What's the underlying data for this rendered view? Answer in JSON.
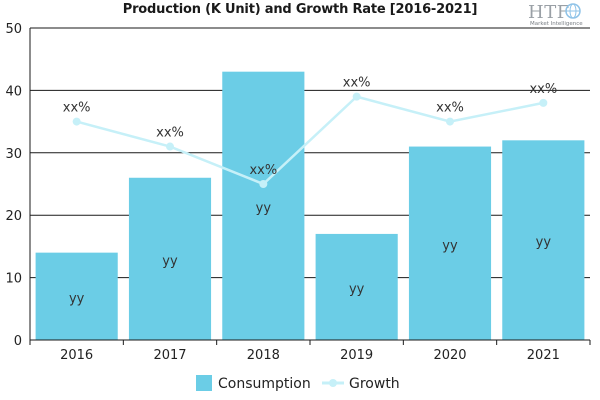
{
  "chart_data": {
    "type": "bar",
    "title": "Production (K Unit) and Growth Rate [2016-2021]",
    "categories": [
      "2016",
      "2017",
      "2018",
      "2019",
      "2020",
      "2021"
    ],
    "ylim": [
      0,
      50
    ],
    "yticks": [
      0,
      10,
      20,
      30,
      40,
      50
    ],
    "grid": true,
    "legend_position": "bottom",
    "series": [
      {
        "name": "Consumption",
        "type": "bar",
        "color": "#6bcde6",
        "values": [
          14,
          26,
          43,
          17,
          31,
          32
        ],
        "labels": [
          "yy",
          "yy",
          "yy",
          "yy",
          "yy",
          "yy"
        ]
      },
      {
        "name": "Growth",
        "type": "line",
        "color": "#c6f0f8",
        "values": [
          35,
          31,
          25,
          39,
          35,
          38
        ],
        "labels": [
          "xx%",
          "xx%",
          "xx%",
          "xx%",
          "xx%",
          "xx%"
        ]
      }
    ]
  },
  "logo": {
    "main": "HTF",
    "sub": "Market Intelligence"
  }
}
